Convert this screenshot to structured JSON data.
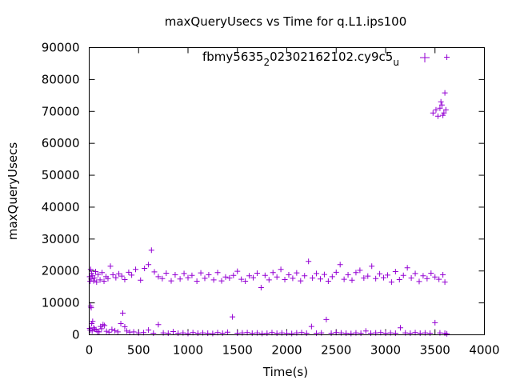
{
  "chart_data": {
    "type": "scatter",
    "title": "maxQueryUsecs vs Time for q.L1.ips100",
    "legend": {
      "label_parts": [
        "fbmy5635",
        "2",
        "02302162102.cy9c5",
        "u"
      ],
      "placement": "top-center"
    },
    "xlabel": "Time(s)",
    "ylabel": "maxQueryUsecs",
    "xlim": [
      0,
      4000
    ],
    "ylim": [
      0,
      90000
    ],
    "xticks": [
      0,
      500,
      1000,
      1500,
      2000,
      2500,
      3000,
      3500,
      4000
    ],
    "yticks": [
      0,
      10000,
      20000,
      30000,
      40000,
      50000,
      60000,
      70000,
      80000,
      90000
    ],
    "marker": "+",
    "color": "#9400d3",
    "grid": false,
    "series": [
      {
        "points": [
          [
            5,
            2000
          ],
          [
            10,
            1500
          ],
          [
            15,
            9000
          ],
          [
            20,
            8500
          ],
          [
            25,
            3500
          ],
          [
            30,
            1200
          ],
          [
            35,
            4200
          ],
          [
            45,
            2200
          ],
          [
            55,
            1800
          ],
          [
            70,
            1600
          ],
          [
            85,
            1000
          ],
          [
            100,
            900
          ],
          [
            115,
            2600
          ],
          [
            125,
            1900
          ],
          [
            140,
            3200
          ],
          [
            155,
            2900
          ],
          [
            175,
            1100
          ],
          [
            200,
            800
          ],
          [
            230,
            1700
          ],
          [
            260,
            1300
          ],
          [
            290,
            900
          ],
          [
            320,
            3500
          ],
          [
            340,
            6800
          ],
          [
            360,
            2500
          ],
          [
            380,
            1200
          ],
          [
            410,
            800
          ],
          [
            450,
            900
          ],
          [
            500,
            600
          ],
          [
            550,
            700
          ],
          [
            600,
            1500
          ],
          [
            650,
            500
          ],
          [
            700,
            3200
          ],
          [
            750,
            600
          ],
          [
            800,
            500
          ],
          [
            850,
            1000
          ],
          [
            900,
            500
          ],
          [
            950,
            600
          ],
          [
            1000,
            400
          ],
          [
            1050,
            700
          ],
          [
            1100,
            500
          ],
          [
            1150,
            600
          ],
          [
            1200,
            500
          ],
          [
            1250,
            400
          ],
          [
            1300,
            700
          ],
          [
            1350,
            500
          ],
          [
            1400,
            800
          ],
          [
            1450,
            5600
          ],
          [
            1500,
            500
          ],
          [
            1550,
            600
          ],
          [
            1600,
            700
          ],
          [
            1650,
            500
          ],
          [
            1700,
            600
          ],
          [
            1750,
            400
          ],
          [
            1800,
            500
          ],
          [
            1850,
            700
          ],
          [
            1900,
            500
          ],
          [
            1950,
            600
          ],
          [
            2000,
            500
          ],
          [
            2050,
            400
          ],
          [
            2100,
            600
          ],
          [
            2150,
            700
          ],
          [
            2200,
            500
          ],
          [
            2250,
            2600
          ],
          [
            2300,
            500
          ],
          [
            2350,
            600
          ],
          [
            2400,
            4800
          ],
          [
            2450,
            500
          ],
          [
            2500,
            700
          ],
          [
            2550,
            600
          ],
          [
            2600,
            500
          ],
          [
            2650,
            400
          ],
          [
            2700,
            600
          ],
          [
            2750,
            500
          ],
          [
            2800,
            1200
          ],
          [
            2850,
            500
          ],
          [
            2900,
            600
          ],
          [
            2950,
            700
          ],
          [
            3000,
            500
          ],
          [
            3050,
            600
          ],
          [
            3100,
            500
          ],
          [
            3150,
            2200
          ],
          [
            3200,
            600
          ],
          [
            3250,
            500
          ],
          [
            3300,
            700
          ],
          [
            3350,
            500
          ],
          [
            3400,
            600
          ],
          [
            3450,
            500
          ],
          [
            3500,
            3800
          ],
          [
            3550,
            600
          ],
          [
            3600,
            500
          ],
          [
            3620,
            300
          ],
          [
            5,
            18200
          ],
          [
            10,
            16800
          ],
          [
            15,
            20500
          ],
          [
            20,
            17500
          ],
          [
            25,
            19200
          ],
          [
            35,
            18500
          ],
          [
            45,
            16900
          ],
          [
            55,
            17800
          ],
          [
            65,
            19800
          ],
          [
            75,
            16500
          ],
          [
            90,
            18900
          ],
          [
            110,
            17200
          ],
          [
            130,
            19500
          ],
          [
            150,
            16800
          ],
          [
            170,
            18200
          ],
          [
            190,
            17600
          ],
          [
            215,
            21500
          ],
          [
            240,
            18800
          ],
          [
            270,
            17900
          ],
          [
            300,
            19100
          ],
          [
            330,
            18400
          ],
          [
            360,
            17300
          ],
          [
            400,
            19600
          ],
          [
            430,
            18700
          ],
          [
            470,
            20500
          ],
          [
            520,
            17100
          ],
          [
            560,
            20800
          ],
          [
            600,
            22000
          ],
          [
            630,
            26500
          ],
          [
            660,
            19700
          ],
          [
            700,
            18200
          ],
          [
            740,
            17600
          ],
          [
            780,
            19300
          ],
          [
            830,
            16900
          ],
          [
            870,
            18800
          ],
          [
            920,
            17500
          ],
          [
            960,
            19200
          ],
          [
            1000,
            17900
          ],
          [
            1040,
            18600
          ],
          [
            1090,
            16800
          ],
          [
            1130,
            19400
          ],
          [
            1170,
            17700
          ],
          [
            1210,
            18800
          ],
          [
            1260,
            17200
          ],
          [
            1300,
            19500
          ],
          [
            1340,
            16900
          ],
          [
            1380,
            18100
          ],
          [
            1420,
            17800
          ],
          [
            1460,
            18600
          ],
          [
            1500,
            19900
          ],
          [
            1540,
            17400
          ],
          [
            1580,
            16800
          ],
          [
            1620,
            18500
          ],
          [
            1660,
            17900
          ],
          [
            1700,
            19300
          ],
          [
            1740,
            14800
          ],
          [
            1780,
            18600
          ],
          [
            1820,
            17200
          ],
          [
            1860,
            19500
          ],
          [
            1900,
            18100
          ],
          [
            1940,
            20500
          ],
          [
            1980,
            17300
          ],
          [
            2020,
            18800
          ],
          [
            2060,
            17700
          ],
          [
            2100,
            19400
          ],
          [
            2140,
            16900
          ],
          [
            2180,
            18500
          ],
          [
            2220,
            23000
          ],
          [
            2260,
            17800
          ],
          [
            2300,
            19200
          ],
          [
            2340,
            17500
          ],
          [
            2380,
            18900
          ],
          [
            2420,
            16800
          ],
          [
            2460,
            18200
          ],
          [
            2500,
            19600
          ],
          [
            2540,
            22000
          ],
          [
            2580,
            17400
          ],
          [
            2620,
            18800
          ],
          [
            2660,
            17100
          ],
          [
            2700,
            19500
          ],
          [
            2740,
            20200
          ],
          [
            2780,
            17800
          ],
          [
            2820,
            18400
          ],
          [
            2860,
            21500
          ],
          [
            2900,
            17600
          ],
          [
            2940,
            19100
          ],
          [
            2980,
            17900
          ],
          [
            3020,
            18700
          ],
          [
            3060,
            16500
          ],
          [
            3100,
            19800
          ],
          [
            3140,
            17300
          ],
          [
            3180,
            18600
          ],
          [
            3220,
            21000
          ],
          [
            3260,
            17800
          ],
          [
            3300,
            19200
          ],
          [
            3340,
            16700
          ],
          [
            3380,
            18500
          ],
          [
            3420,
            17600
          ],
          [
            3460,
            19300
          ],
          [
            3500,
            18100
          ],
          [
            3540,
            17400
          ],
          [
            3580,
            18800
          ],
          [
            3600,
            16500
          ],
          [
            3480,
            69500
          ],
          [
            3510,
            70500
          ],
          [
            3530,
            68500
          ],
          [
            3550,
            71000
          ],
          [
            3560,
            73000
          ],
          [
            3570,
            72000
          ],
          [
            3580,
            68800
          ],
          [
            3590,
            69500
          ],
          [
            3600,
            75800
          ],
          [
            3610,
            70500
          ],
          [
            3620,
            87000
          ]
        ]
      }
    ]
  }
}
